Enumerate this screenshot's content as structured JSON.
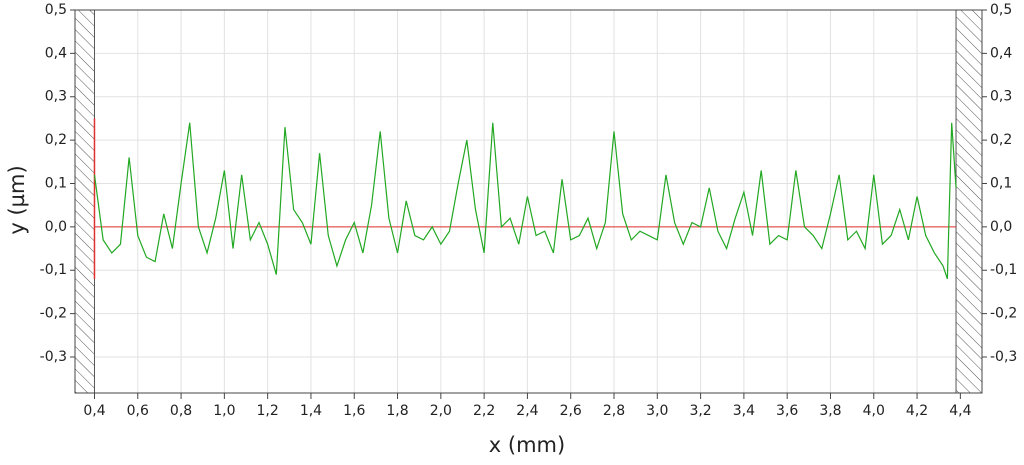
{
  "chart_data": {
    "type": "line",
    "x_label": "x (mm)",
    "y_label": "y (µm)",
    "x": [
      0.4,
      0.44,
      0.48,
      0.52,
      0.56,
      0.6,
      0.64,
      0.68,
      0.72,
      0.76,
      0.8,
      0.84,
      0.88,
      0.92,
      0.96,
      1.0,
      1.04,
      1.08,
      1.12,
      1.16,
      1.2,
      1.24,
      1.28,
      1.32,
      1.36,
      1.4,
      1.44,
      1.48,
      1.52,
      1.56,
      1.6,
      1.64,
      1.68,
      1.72,
      1.76,
      1.8,
      1.84,
      1.88,
      1.92,
      1.96,
      2.0,
      2.04,
      2.08,
      2.12,
      2.16,
      2.2,
      2.24,
      2.28,
      2.32,
      2.36,
      2.4,
      2.44,
      2.48,
      2.52,
      2.56,
      2.6,
      2.64,
      2.68,
      2.72,
      2.76,
      2.8,
      2.84,
      2.88,
      2.92,
      2.96,
      3.0,
      3.04,
      3.08,
      3.12,
      3.16,
      3.2,
      3.24,
      3.28,
      3.32,
      3.36,
      3.4,
      3.44,
      3.48,
      3.52,
      3.56,
      3.6,
      3.64,
      3.68,
      3.72,
      3.76,
      3.8,
      3.84,
      3.88,
      3.92,
      3.96,
      4.0,
      4.04,
      4.08,
      4.12,
      4.16,
      4.2,
      4.24,
      4.28,
      4.32,
      4.34,
      4.36,
      4.38
    ],
    "series": [
      {
        "color": "#22a822",
        "values": [
          0.12,
          -0.03,
          -0.06,
          -0.04,
          0.16,
          -0.02,
          -0.07,
          -0.08,
          0.03,
          -0.05,
          0.1,
          0.24,
          0.0,
          -0.06,
          0.02,
          0.13,
          -0.05,
          0.12,
          -0.03,
          0.01,
          -0.04,
          -0.11,
          0.23,
          0.04,
          0.01,
          -0.04,
          0.17,
          -0.02,
          -0.09,
          -0.03,
          0.01,
          -0.06,
          0.05,
          0.22,
          0.02,
          -0.06,
          0.06,
          -0.02,
          -0.03,
          0.0,
          -0.04,
          -0.01,
          0.1,
          0.2,
          0.04,
          -0.06,
          0.24,
          0.0,
          0.02,
          -0.04,
          0.07,
          -0.02,
          -0.01,
          -0.06,
          0.11,
          -0.03,
          -0.02,
          0.02,
          -0.05,
          0.01,
          0.22,
          0.03,
          -0.03,
          -0.01,
          -0.02,
          -0.03,
          0.12,
          0.01,
          -0.04,
          0.01,
          0.0,
          0.09,
          -0.01,
          -0.05,
          0.02,
          0.08,
          -0.02,
          0.13,
          -0.04,
          -0.02,
          -0.03,
          0.13,
          0.0,
          -0.02,
          -0.05,
          0.03,
          0.12,
          -0.03,
          -0.01,
          -0.05,
          0.12,
          -0.04,
          -0.02,
          0.04,
          -0.03,
          0.07,
          -0.02,
          -0.06,
          -0.09,
          -0.12,
          0.24,
          0.09
        ]
      }
    ],
    "xlim": [
      0.31,
      4.5
    ],
    "ylim": [
      -0.383,
      0.5
    ],
    "xticks": [
      {
        "value": 0.4,
        "label": "0,4"
      },
      {
        "value": 0.6,
        "label": "0,6"
      },
      {
        "value": 0.8,
        "label": "0,8"
      },
      {
        "value": 1.0,
        "label": "1,0"
      },
      {
        "value": 1.2,
        "label": "1,2"
      },
      {
        "value": 1.4,
        "label": "1,4"
      },
      {
        "value": 1.6,
        "label": "1,6"
      },
      {
        "value": 1.8,
        "label": "1,8"
      },
      {
        "value": 2.0,
        "label": "2,0"
      },
      {
        "value": 2.2,
        "label": "2,2"
      },
      {
        "value": 2.4,
        "label": "2,4"
      },
      {
        "value": 2.6,
        "label": "2,6"
      },
      {
        "value": 2.8,
        "label": "2,8"
      },
      {
        "value": 3.0,
        "label": "3,0"
      },
      {
        "value": 3.2,
        "label": "3,2"
      },
      {
        "value": 3.4,
        "label": "3,4"
      },
      {
        "value": 3.6,
        "label": "3,6"
      },
      {
        "value": 3.8,
        "label": "3,8"
      },
      {
        "value": 4.0,
        "label": "4,0"
      },
      {
        "value": 4.2,
        "label": "4,2"
      },
      {
        "value": 4.4,
        "label": "4,4"
      }
    ],
    "yticks": [
      {
        "value": 0.5,
        "label": "0,5"
      },
      {
        "value": 0.4,
        "label": "0,4"
      },
      {
        "value": 0.3,
        "label": "0,3"
      },
      {
        "value": 0.2,
        "label": "0,2"
      },
      {
        "value": 0.1,
        "label": "0,1"
      },
      {
        "value": 0,
        "label": "0,0"
      },
      {
        "value": -0.1,
        "label": "-0,1"
      },
      {
        "value": -0.2,
        "label": "-0,2"
      },
      {
        "value": -0.3,
        "label": "-0,3"
      }
    ],
    "grid": true,
    "evaluation_range": [
      0.4,
      4.38
    ],
    "baseline": 0,
    "marker_line": {
      "x": 0.4,
      "y": [
        -0.12,
        0.25
      ]
    },
    "reference_color": "#e03030"
  }
}
